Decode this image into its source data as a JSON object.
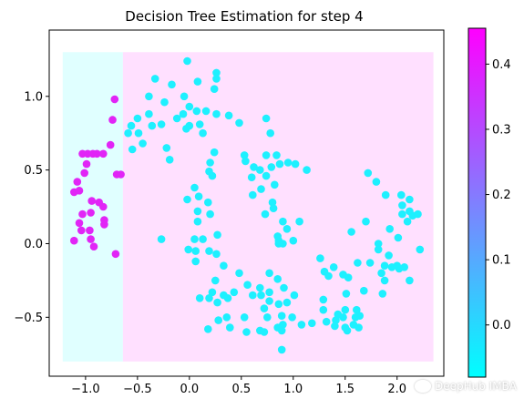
{
  "chart_data": {
    "type": "scatter",
    "title": "Decision Tree Estimation for step 4",
    "xlim": [
      -1.35,
      2.45
    ],
    "ylim": [
      -0.9,
      1.45
    ],
    "xticks": [
      -1.0,
      -0.5,
      0.0,
      0.5,
      1.0,
      1.5,
      2.0
    ],
    "xtick_labels": [
      "−1.0",
      "−0.5",
      "0.0",
      "0.5",
      "1.0",
      "1.5",
      "2.0"
    ],
    "yticks": [
      -0.5,
      0.0,
      0.5,
      1.0
    ],
    "ytick_labels": [
      "−0.5",
      "0.0",
      "0.5",
      "1.0"
    ],
    "regions": [
      {
        "x": [
          -1.22,
          -0.64
        ],
        "y": [
          -0.8,
          1.3
        ],
        "value": 0.0,
        "color": "#e0ffff"
      },
      {
        "x": [
          -0.64,
          2.35
        ],
        "y": [
          -0.8,
          1.3
        ],
        "value": 0.45,
        "color": "#ffe0ff"
      }
    ],
    "colorbar": {
      "min": -0.08,
      "max": 0.455,
      "ticks": [
        0.0,
        0.1,
        0.2,
        0.3,
        0.4
      ],
      "tick_labels": [
        "0.0",
        "0.1",
        "0.2",
        "0.3",
        "0.4"
      ],
      "colormap": "cool",
      "color_low": "#00ffff",
      "color_high": "#ff00ff"
    },
    "series": [
      {
        "color": "#1ef0ff",
        "points": [
          [
            -0.02,
            1.24
          ],
          [
            0.26,
            1.16
          ],
          [
            -0.33,
            1.12
          ],
          [
            0.08,
            1.1
          ],
          [
            0.26,
            1.12
          ],
          [
            0.24,
            1.05
          ],
          [
            -0.17,
            1.08
          ],
          [
            -0.39,
            1.0
          ],
          [
            -0.05,
            1.0
          ],
          [
            -0.24,
            0.96
          ],
          [
            0.0,
            0.93
          ],
          [
            0.07,
            0.9
          ],
          [
            0.16,
            0.9
          ],
          [
            0.26,
            0.88
          ],
          [
            -0.06,
            0.88
          ],
          [
            -0.12,
            0.85
          ],
          [
            -0.39,
            0.88
          ],
          [
            -0.5,
            0.85
          ],
          [
            -0.36,
            0.8
          ],
          [
            -0.27,
            0.81
          ],
          [
            0.1,
            0.81
          ],
          [
            0.0,
            0.8
          ],
          [
            -0.03,
            0.78
          ],
          [
            0.38,
            0.87
          ],
          [
            0.48,
            0.82
          ],
          [
            0.74,
            0.85
          ],
          [
            -0.56,
            0.8
          ],
          [
            -0.59,
            0.75
          ],
          [
            -0.49,
            0.75
          ],
          [
            0.13,
            0.75
          ],
          [
            -0.45,
            0.68
          ],
          [
            -0.22,
            0.65
          ],
          [
            -0.55,
            0.64
          ],
          [
            0.24,
            0.62
          ],
          [
            0.78,
            0.75
          ],
          [
            0.2,
            0.55
          ],
          [
            -0.19,
            0.57
          ],
          [
            0.53,
            0.6
          ],
          [
            0.54,
            0.56
          ],
          [
            0.84,
            0.6
          ],
          [
            0.74,
            0.6
          ],
          [
            0.62,
            0.52
          ],
          [
            0.79,
            0.52
          ],
          [
            0.87,
            0.54
          ],
          [
            0.68,
            0.5
          ],
          [
            0.6,
            0.45
          ],
          [
            0.95,
            0.55
          ],
          [
            1.02,
            0.54
          ],
          [
            0.19,
            0.49
          ],
          [
            0.22,
            0.46
          ],
          [
            0.74,
            0.46
          ],
          [
            1.13,
            0.5
          ],
          [
            0.82,
            0.4
          ],
          [
            0.69,
            0.37
          ],
          [
            0.61,
            0.33
          ],
          [
            0.05,
            0.38
          ],
          [
            -0.02,
            0.3
          ],
          [
            0.09,
            0.32
          ],
          [
            0.18,
            0.28
          ],
          [
            0.8,
            0.28
          ],
          [
            0.81,
            0.24
          ],
          [
            0.08,
            0.22
          ],
          [
            0.2,
            0.2
          ],
          [
            0.73,
            0.2
          ],
          [
            0.08,
            0.15
          ],
          [
            0.9,
            0.15
          ],
          [
            1.06,
            0.15
          ],
          [
            0.27,
            0.06
          ],
          [
            0.94,
            0.1
          ],
          [
            0.85,
            0.05
          ],
          [
            0.86,
            0.0
          ],
          [
            1.0,
            0.02
          ],
          [
            1.7,
            0.15
          ],
          [
            1.56,
            0.08
          ],
          [
            1.93,
            0.1
          ],
          [
            2.01,
            0.04
          ],
          [
            1.82,
            0.0
          ],
          [
            -0.27,
            0.03
          ],
          [
            0.05,
            0.03
          ],
          [
            0.13,
            0.03
          ],
          [
            0.86,
            0.02
          ],
          [
            0.9,
            0.0
          ],
          [
            -0.01,
            -0.04
          ],
          [
            0.06,
            -0.05
          ],
          [
            0.19,
            -0.05
          ],
          [
            0.26,
            -0.07
          ],
          [
            1.82,
            -0.04
          ],
          [
            1.92,
            -0.08
          ],
          [
            2.22,
            -0.04
          ],
          [
            0.33,
            -0.15
          ],
          [
            0.06,
            -0.12
          ],
          [
            1.26,
            -0.1
          ],
          [
            1.62,
            -0.13
          ],
          [
            1.74,
            -0.13
          ],
          [
            1.88,
            -0.15
          ],
          [
            1.95,
            -0.16
          ],
          [
            2.0,
            -0.15
          ],
          [
            1.39,
            -0.16
          ],
          [
            0.48,
            -0.2
          ],
          [
            0.77,
            -0.2
          ],
          [
            1.3,
            -0.19
          ],
          [
            2.07,
            -0.16
          ],
          [
            2.02,
            -0.17
          ],
          [
            1.85,
            -0.2
          ],
          [
            0.85,
            -0.24
          ],
          [
            0.25,
            -0.25
          ],
          [
            1.34,
            -0.22
          ],
          [
            1.48,
            -0.21
          ],
          [
            2.12,
            -0.25
          ],
          [
            1.88,
            -0.25
          ],
          [
            0.56,
            -0.28
          ],
          [
            0.68,
            -0.3
          ],
          [
            1.53,
            -0.23
          ],
          [
            0.43,
            -0.33
          ],
          [
            0.77,
            -0.33
          ],
          [
            0.91,
            -0.3
          ],
          [
            0.22,
            -0.33
          ],
          [
            1.68,
            -0.32
          ],
          [
            0.33,
            -0.35
          ],
          [
            0.19,
            -0.37
          ],
          [
            0.37,
            -0.37
          ],
          [
            1.86,
            -0.34
          ],
          [
            0.61,
            -0.35
          ],
          [
            0.69,
            -0.35
          ],
          [
            0.27,
            -0.4
          ],
          [
            0.1,
            -0.37
          ],
          [
            1.01,
            -0.35
          ],
          [
            0.77,
            -0.39
          ],
          [
            0.72,
            -0.44
          ],
          [
            0.94,
            -0.4
          ],
          [
            1.29,
            -0.38
          ],
          [
            1.51,
            -0.34
          ],
          [
            0.86,
            -0.41
          ],
          [
            0.89,
            -0.49
          ],
          [
            1.5,
            -0.45
          ],
          [
            1.29,
            -0.45
          ],
          [
            0.28,
            -0.52
          ],
          [
            0.36,
            -0.5
          ],
          [
            0.53,
            -0.5
          ],
          [
            0.75,
            -0.5
          ],
          [
            0.9,
            -0.55
          ],
          [
            0.99,
            -0.5
          ],
          [
            1.08,
            -0.55
          ],
          [
            1.43,
            -0.48
          ],
          [
            1.41,
            -0.52
          ],
          [
            1.48,
            -0.5
          ],
          [
            1.61,
            -0.45
          ],
          [
            1.64,
            -0.49
          ],
          [
            1.58,
            -0.55
          ],
          [
            1.4,
            -0.56
          ],
          [
            1.32,
            -0.53
          ],
          [
            1.18,
            -0.54
          ],
          [
            1.6,
            -0.5
          ],
          [
            0.85,
            -0.57
          ],
          [
            0.39,
            -0.57
          ],
          [
            0.18,
            -0.58
          ],
          [
            0.55,
            -0.6
          ],
          [
            0.68,
            -0.59
          ],
          [
            0.72,
            -0.6
          ],
          [
            0.89,
            -0.59
          ],
          [
            1.5,
            -0.57
          ],
          [
            1.52,
            -0.59
          ],
          [
            1.63,
            -0.57
          ],
          [
            0.89,
            -0.72
          ],
          [
            1.72,
            0.48
          ],
          [
            1.8,
            0.42
          ],
          [
            1.89,
            0.33
          ],
          [
            2.04,
            0.33
          ],
          [
            2.12,
            0.3
          ],
          [
            2.12,
            0.22
          ],
          [
            2.05,
            0.26
          ],
          [
            2.15,
            0.19
          ],
          [
            2.1,
            0.15
          ],
          [
            2.2,
            0.2
          ],
          [
            2.05,
            0.2
          ]
        ]
      },
      {
        "color": "#e125f6",
        "points": [
          [
            -1.03,
            0.61
          ],
          [
            -0.98,
            0.61
          ],
          [
            -0.93,
            0.61
          ],
          [
            -0.89,
            0.61
          ],
          [
            -0.83,
            0.61
          ],
          [
            -0.76,
            0.67
          ],
          [
            -0.74,
            0.84
          ],
          [
            -0.72,
            0.98
          ],
          [
            -0.66,
            0.47
          ],
          [
            -0.7,
            0.47
          ],
          [
            -0.99,
            0.54
          ],
          [
            -1.01,
            0.48
          ],
          [
            -1.08,
            0.42
          ],
          [
            -1.11,
            0.35
          ],
          [
            -1.06,
            0.36
          ],
          [
            -0.94,
            0.29
          ],
          [
            -0.87,
            0.28
          ],
          [
            -0.95,
            0.21
          ],
          [
            -0.83,
            0.25
          ],
          [
            -0.82,
            0.16
          ],
          [
            -1.03,
            0.2
          ],
          [
            -1.06,
            0.14
          ],
          [
            -0.96,
            0.09
          ],
          [
            -0.82,
            0.13
          ],
          [
            -0.95,
            0.03
          ],
          [
            -1.04,
            0.09
          ],
          [
            -1.11,
            0.02
          ],
          [
            -0.92,
            -0.02
          ],
          [
            -0.71,
            -0.07
          ]
        ]
      }
    ]
  },
  "watermark": {
    "text": "DeepHub IMBA",
    "icon": "wechat-logo-icon"
  }
}
